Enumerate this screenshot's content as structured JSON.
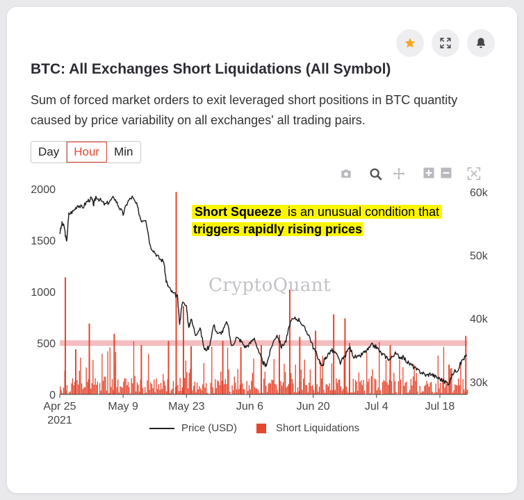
{
  "toolbar": {
    "star_icon": "star-icon",
    "expand_icon": "expand-icon",
    "bell_icon": "bell-icon"
  },
  "header": {
    "title": "BTC: All Exchanges Short Liquidations (All Symbol)",
    "description": "Sum of forced market orders to exit leveraged short positions in BTC quantity caused by price variability on all exchanges' all trading pairs."
  },
  "timeframe": {
    "options": [
      "Day",
      "Hour",
      "Min"
    ],
    "selected": "Hour"
  },
  "modebar": [
    "camera-icon",
    "zoom-icon",
    "pan-icon",
    "zoom-in-icon",
    "zoom-out-icon",
    "autoscale-icon"
  ],
  "annotation": {
    "bold_lead": "Short Squeeze",
    "rest_line1": " is an unusual condition that",
    "line2": "triggers rapidly rising prices"
  },
  "watermark": "CryptoQuant",
  "colors": {
    "accent": "#e4462f",
    "bar": "#e4462f",
    "price_line": "#1a1a1a",
    "threshold_band": "#f2b2b4",
    "highlight": "#fbf600"
  },
  "chart_data": {
    "type": "bar+line",
    "title": "BTC: All Exchanges Short Liquidations (All Symbol)",
    "x_ticks": [
      {
        "label": "Apr 25",
        "sub": "2021",
        "day": 0
      },
      {
        "label": "May 9",
        "day": 14
      },
      {
        "label": "May 23",
        "day": 28
      },
      {
        "label": "Jun 6",
        "day": 42
      },
      {
        "label": "Jun 20",
        "day": 56
      },
      {
        "label": "Jul 4",
        "day": 70
      },
      {
        "label": "Jul 18",
        "day": 84
      }
    ],
    "x_range_days": [
      0,
      90
    ],
    "y_left": {
      "ticks": [
        0,
        500,
        1000,
        1500,
        2000
      ],
      "range": [
        0,
        2000
      ]
    },
    "y_right": {
      "ticks": [
        "30k",
        "40k",
        "50k",
        "60k"
      ],
      "values": [
        30000,
        40000,
        50000,
        60000
      ],
      "range": [
        28000,
        60500
      ]
    },
    "threshold_value": 500,
    "series": [
      {
        "name": "Price (USD)",
        "type": "line",
        "axis": "right",
        "points": [
          [
            0,
            53500
          ],
          [
            0.5,
            55000
          ],
          [
            1,
            54500
          ],
          [
            1.5,
            52000
          ],
          [
            2,
            56500
          ],
          [
            3,
            57000
          ],
          [
            4,
            58000
          ],
          [
            5,
            57500
          ],
          [
            6,
            58500
          ],
          [
            7,
            59000
          ],
          [
            7.5,
            58000
          ],
          [
            8,
            59300
          ],
          [
            9,
            58700
          ],
          [
            10,
            58000
          ],
          [
            11,
            58500
          ],
          [
            12,
            59200
          ],
          [
            13,
            57800
          ],
          [
            14,
            56500
          ],
          [
            15,
            58500
          ],
          [
            16,
            59200
          ],
          [
            17,
            58000
          ],
          [
            18,
            55500
          ],
          [
            19,
            55800
          ],
          [
            20,
            51500
          ],
          [
            21,
            50500
          ],
          [
            22,
            49500
          ],
          [
            23,
            49000
          ],
          [
            23.5,
            46000
          ],
          [
            24,
            45000
          ],
          [
            25,
            44000
          ],
          [
            26,
            43500
          ],
          [
            26.5,
            39000
          ],
          [
            27,
            42500
          ],
          [
            28,
            42000
          ],
          [
            28.5,
            38500
          ],
          [
            29,
            40000
          ],
          [
            30,
            37500
          ],
          [
            31,
            38500
          ],
          [
            32,
            35000
          ],
          [
            33,
            35500
          ],
          [
            34,
            39000
          ],
          [
            35,
            37500
          ],
          [
            36,
            38000
          ],
          [
            37,
            39500
          ],
          [
            38,
            35500
          ],
          [
            39,
            37000
          ],
          [
            40,
            36500
          ],
          [
            41,
            35500
          ],
          [
            42,
            36000
          ],
          [
            43,
            37000
          ],
          [
            44,
            34500
          ],
          [
            45,
            33000
          ],
          [
            45.5,
            32500
          ],
          [
            46,
            33500
          ],
          [
            47,
            36000
          ],
          [
            48,
            37500
          ],
          [
            49,
            35500
          ],
          [
            50,
            36500
          ],
          [
            51,
            39500
          ],
          [
            52,
            40000
          ],
          [
            53,
            39800
          ],
          [
            54,
            38500
          ],
          [
            55,
            37500
          ],
          [
            56,
            35500
          ],
          [
            57,
            34000
          ],
          [
            58,
            32300
          ],
          [
            58.5,
            33500
          ],
          [
            59,
            34000
          ],
          [
            60,
            35000
          ],
          [
            61,
            34500
          ],
          [
            62,
            33000
          ],
          [
            63,
            34000
          ],
          [
            64,
            35500
          ],
          [
            65,
            34000
          ],
          [
            66,
            33800
          ],
          [
            67,
            34500
          ],
          [
            68,
            35000
          ],
          [
            69,
            35800
          ],
          [
            70,
            35500
          ],
          [
            71,
            34500
          ],
          [
            72,
            34000
          ],
          [
            73,
            33500
          ],
          [
            74,
            34500
          ],
          [
            75,
            34000
          ],
          [
            76,
            33800
          ],
          [
            77,
            33000
          ],
          [
            78,
            32500
          ],
          [
            79,
            31800
          ],
          [
            80,
            31500
          ],
          [
            81,
            31000
          ],
          [
            82,
            31300
          ],
          [
            83,
            30800
          ],
          [
            84,
            30500
          ],
          [
            85,
            30000
          ],
          [
            86,
            29800
          ],
          [
            87,
            31500
          ],
          [
            88,
            32000
          ],
          [
            89,
            33500
          ],
          [
            90,
            34200
          ]
        ]
      },
      {
        "name": "Short Liquidations",
        "type": "bar",
        "axis": "left",
        "baseline_max": 160,
        "spikes": [
          {
            "day": 1.2,
            "value": 1140
          },
          {
            "day": 3.5,
            "value": 440
          },
          {
            "day": 6.5,
            "value": 690
          },
          {
            "day": 12,
            "value": 590
          },
          {
            "day": 18,
            "value": 480
          },
          {
            "day": 24,
            "value": 520
          },
          {
            "day": 25.7,
            "value": 1970
          },
          {
            "day": 27.3,
            "value": 860
          },
          {
            "day": 29,
            "value": 470
          },
          {
            "day": 36,
            "value": 520
          },
          {
            "day": 40,
            "value": 460
          },
          {
            "day": 44.5,
            "value": 480
          },
          {
            "day": 48.5,
            "value": 580
          },
          {
            "day": 50.8,
            "value": 1020
          },
          {
            "day": 53,
            "value": 560
          },
          {
            "day": 56.5,
            "value": 620
          },
          {
            "day": 60.5,
            "value": 780
          },
          {
            "day": 63,
            "value": 740
          },
          {
            "day": 64,
            "value": 500
          },
          {
            "day": 73,
            "value": 480
          },
          {
            "day": 86,
            "value": 290
          },
          {
            "day": 89.7,
            "value": 570
          }
        ]
      }
    ],
    "legend": [
      "Price (USD)",
      "Short Liquidations"
    ],
    "legend_position": "bottom-center"
  }
}
